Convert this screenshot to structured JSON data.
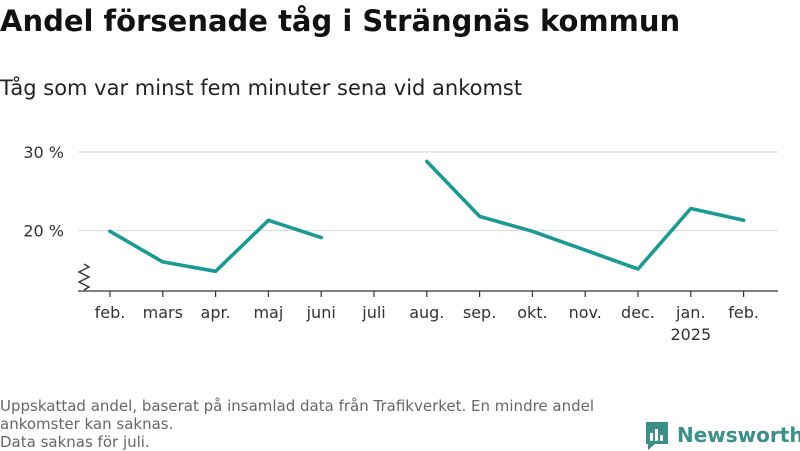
{
  "title": "Andel försenade tåg i Strängnäs kommun",
  "subtitle": "Tåg som var minst fem minuter sena vid ankomst",
  "footnote": {
    "line1": "Uppskattad andel, baserat på insamlad data från Trafikverket. En mindre andel ankomster kan saknas.",
    "line2": "Data saknas för juli."
  },
  "brand": {
    "name": "Newsworthy",
    "icon": "newsworthy-logo-icon",
    "color": "#3a8f88"
  },
  "chart_data": {
    "type": "line",
    "title": "Andel försenade tåg i Strängnäs kommun",
    "subtitle": "Tåg som var minst fem minuter sena vid ankomst",
    "categories": [
      "feb.",
      "mars",
      "apr.",
      "maj",
      "juni",
      "juli",
      "aug.",
      "sep.",
      "okt.",
      "nov.",
      "dec.",
      "jan.",
      "feb."
    ],
    "year_labels": [
      "",
      "",
      "",
      "",
      "",
      "",
      "",
      "",
      "",
      "",
      "",
      "2025",
      ""
    ],
    "series": [
      {
        "color": "#1a9a94",
        "values": [
          19.9,
          16.0,
          14.8,
          21.3,
          19.1,
          null,
          28.8,
          21.8,
          19.9,
          17.5,
          15.1,
          22.8,
          21.3
        ]
      }
    ],
    "y_ticks": [
      20,
      30
    ],
    "y_tick_labels": [
      "20 %",
      "30 %"
    ],
    "ylim": [
      13.5,
      31
    ],
    "axis_break": true,
    "grid": true
  }
}
